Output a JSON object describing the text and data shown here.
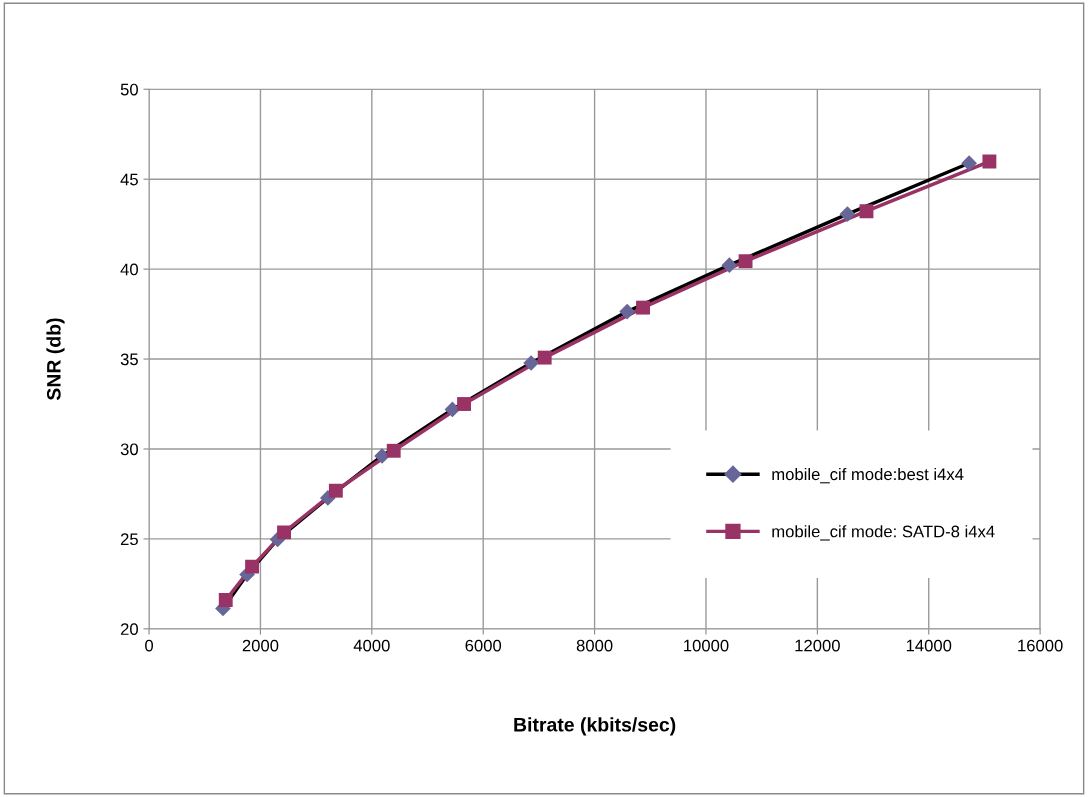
{
  "chart_data": {
    "type": "line",
    "xlabel": "Bitrate (kbits/sec)",
    "ylabel": "SNR (db)",
    "xlim": [
      0,
      16000
    ],
    "xticks": [
      0,
      2000,
      4000,
      6000,
      8000,
      10000,
      12000,
      14000,
      16000
    ],
    "ylim": [
      20,
      50
    ],
    "yticks": [
      20,
      25,
      30,
      35,
      40,
      45,
      50
    ],
    "grid": true,
    "legend": "lower right",
    "series": [
      {
        "name": "mobile_cif mode:best i4x4",
        "color": "#000000",
        "colors": [
          "#666699",
          "#666699",
          "#666699",
          "#666699",
          "#666699",
          "#666699",
          "#666699",
          "#666699",
          "#666699",
          "#666699",
          "#666699"
        ],
        "marker": "diamond",
        "x": [
          1327,
          1760,
          2308,
          3210,
          4184,
          5447,
          6860,
          8585,
          10420,
          12540,
          14725
        ],
        "values": [
          21.13,
          23.02,
          24.97,
          27.28,
          29.61,
          32.2,
          34.78,
          37.64,
          40.22,
          43.06,
          45.89
        ]
      },
      {
        "name": "mobile_cif mode: SATD-8 i4x4",
        "color": "#993366",
        "colors": [
          "#993366",
          "#993366",
          "#993366",
          "#993366",
          "#993366",
          "#993366",
          "#993366",
          "#993366",
          "#993366",
          "#993366",
          "#993366"
        ],
        "marker": "square",
        "x": [
          1377,
          1850,
          2424,
          3354,
          4393,
          5656,
          7104,
          8870,
          10711,
          12882,
          15089
        ],
        "values": [
          21.6,
          23.46,
          25.36,
          27.68,
          29.9,
          32.5,
          35.08,
          37.86,
          40.44,
          43.22,
          45.98
        ]
      }
    ]
  }
}
